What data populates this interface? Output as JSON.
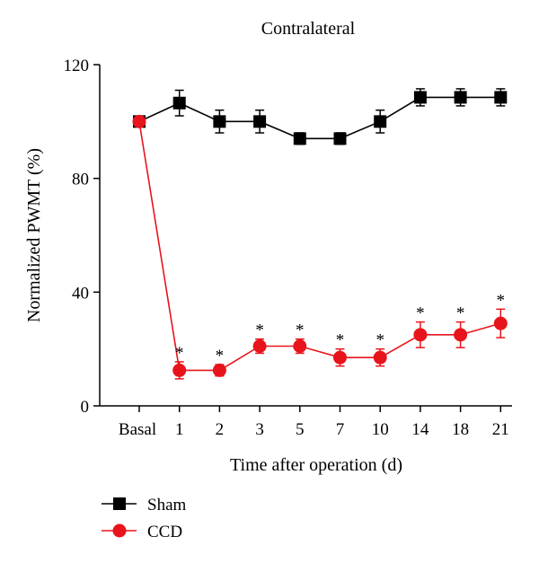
{
  "chart_data": {
    "type": "line",
    "title": "Contralateral",
    "xlabel": "Time after operation (d)",
    "ylabel": "Normalized PWMT (%)",
    "categories": [
      "Basal",
      "1",
      "2",
      "3",
      "5",
      "7",
      "10",
      "14",
      "18",
      "21"
    ],
    "ylim": [
      0,
      120
    ],
    "yticks": [
      0,
      40,
      80,
      120
    ],
    "grid": false,
    "legend": "bottom-left",
    "series": [
      {
        "name": "Sham",
        "color": "#000000",
        "marker": "square",
        "values": [
          100,
          106.5,
          100,
          100,
          94,
          94,
          100,
          108.5,
          108.5,
          108.5
        ],
        "errors": [
          0,
          4.5,
          4,
          4,
          2,
          2,
          4,
          3,
          3,
          3
        ],
        "significance": [
          "",
          "",
          "",
          "",
          "",
          "",
          "",
          "",
          "",
          ""
        ]
      },
      {
        "name": "CCD",
        "color": "#e8141b",
        "marker": "circle",
        "values": [
          100,
          12.5,
          12.5,
          21,
          21,
          17,
          17,
          25,
          25,
          29
        ],
        "errors": [
          0,
          3,
          2,
          2.5,
          2.5,
          3,
          3,
          4.5,
          4.5,
          5
        ],
        "significance": [
          "",
          "*",
          "*",
          "*",
          "*",
          "*",
          "*",
          "*",
          "*",
          "*"
        ]
      }
    ]
  }
}
